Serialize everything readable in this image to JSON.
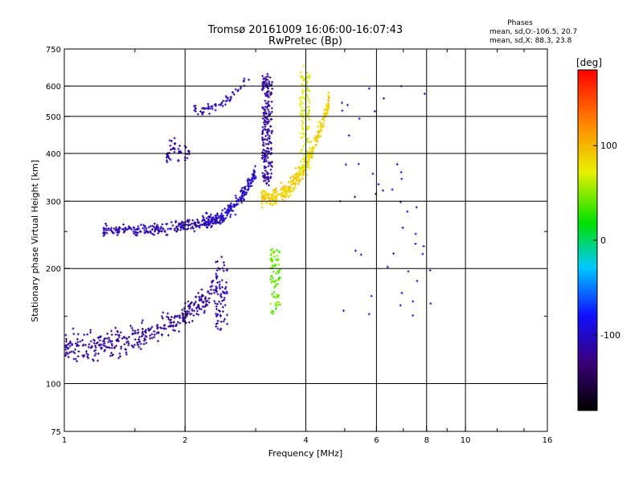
{
  "chart_data": {
    "type": "scatter",
    "title": "Tromsø 20161009 16:06:00-16:07:43",
    "subtitle": "RwPretec (Bp)",
    "xlabel": "Frequency [MHz]",
    "ylabel": "Stationary phase Virtual Height [km]",
    "x_scale": "log",
    "y_scale": "log",
    "xlim": [
      1,
      16
    ],
    "ylim": [
      75,
      750
    ],
    "x_ticks": [
      1,
      2,
      4,
      6,
      8,
      10,
      16
    ],
    "x_tick_labels": [
      "1",
      "2",
      "4",
      "6",
      "8",
      "10",
      "16"
    ],
    "x_minor_ticks": [
      1.5,
      3,
      5,
      7,
      9,
      12,
      14
    ],
    "y_ticks": [
      75,
      100,
      200,
      300,
      400,
      500,
      600,
      750
    ],
    "y_tick_labels": [
      "75",
      "100",
      "200",
      "300",
      "400",
      "500",
      "600",
      "750"
    ],
    "y_minor_ticks": [
      150,
      250
    ],
    "grid": true,
    "stats": {
      "heading": "Phases",
      "line_o": "mean, sd,O:-106.5, 20.7",
      "line_x": "mean, sd,X:  88.3, 23.8"
    },
    "colorbar": {
      "label": "[deg]",
      "range": [
        -180,
        180
      ],
      "ticks": [
        -100,
        0,
        100
      ],
      "tick_labels": [
        "-100",
        "0",
        "100"
      ]
    },
    "clusters": [
      {
        "name": "O-mode F-trace low",
        "phase": -110,
        "x_range": [
          1.25,
          2.45
        ],
        "y_start": 252,
        "y_end": 268,
        "n": 240,
        "curve": "rising",
        "scatter": 0.05
      },
      {
        "name": "O-mode F-trace upper",
        "phase": -100,
        "x_range": [
          2.2,
          3.0
        ],
        "y_start": 265,
        "y_end": 360,
        "n": 180,
        "curve": "rising",
        "scatter": 0.07
      },
      {
        "name": "O-mode F-trace cusp",
        "phase": -115,
        "x_range": [
          2.9,
          3.3
        ],
        "y_start": 330,
        "y_end": 640,
        "n": 220,
        "curve": "vertical",
        "scatter": 0.03
      },
      {
        "name": "O-mode upper band",
        "phase": -108,
        "x_range": [
          2.1,
          2.9
        ],
        "y_start": 520,
        "y_end": 640,
        "n": 60,
        "curve": "rising",
        "scatter": 0.04
      },
      {
        "name": "O-mode mid group",
        "phase": -110,
        "x_range": [
          1.8,
          2.05
        ],
        "y_start": 380,
        "y_end": 430,
        "n": 45,
        "curve": "flat",
        "scatter": 0.05
      },
      {
        "name": "E-region trace",
        "phase": -118,
        "x_range": [
          1.0,
          2.4
        ],
        "y_start": 125,
        "y_end": 175,
        "n": 380,
        "curve": "rising",
        "scatter": 0.12
      },
      {
        "name": "E-region cusp",
        "phase": -112,
        "x_range": [
          2.2,
          2.55
        ],
        "y_start": 135,
        "y_end": 215,
        "n": 70,
        "curve": "vertical",
        "scatter": 0.05
      },
      {
        "name": "X-mode F-trace",
        "phase": 88,
        "x_range": [
          3.1,
          4.6
        ],
        "y_start": 305,
        "y_end": 560,
        "n": 320,
        "curve": "rising",
        "scatter": 0.08
      },
      {
        "name": "X-mode cusp",
        "phase": 72,
        "x_range": [
          3.6,
          4.1
        ],
        "y_start": 360,
        "y_end": 660,
        "n": 120,
        "curve": "vertical",
        "scatter": 0.04
      },
      {
        "name": "X-mode E trace",
        "phase": 40,
        "x_range": [
          3.05,
          3.45
        ],
        "y_start": 155,
        "y_end": 225,
        "n": 80,
        "curve": "vertical",
        "scatter": 0.04
      },
      {
        "name": "sparse high freq",
        "phase": -95,
        "x_range": [
          4.8,
          8.2
        ],
        "y_start": 150,
        "y_end": 600,
        "n": 45,
        "curve": "random",
        "scatter": 0.0
      }
    ]
  }
}
